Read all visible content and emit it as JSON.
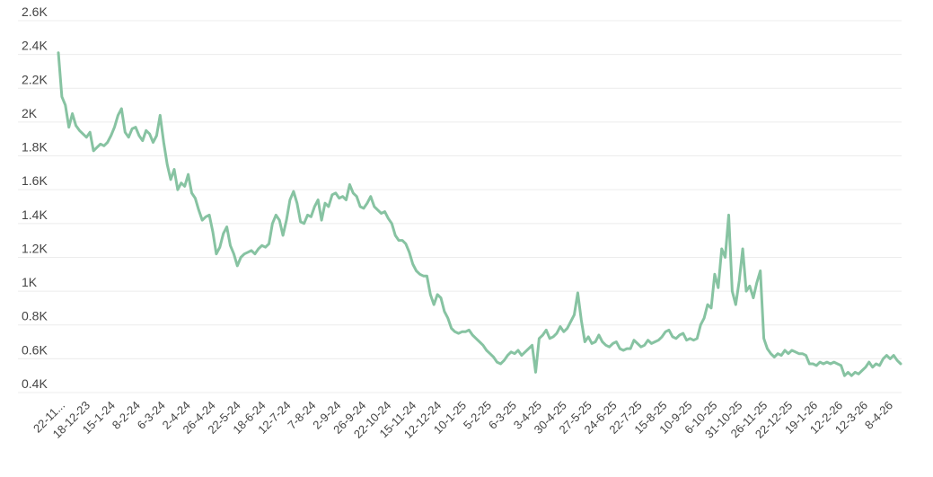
{
  "chart_data": {
    "type": "line",
    "title": "",
    "xlabel": "",
    "ylabel": "",
    "ylim": [
      0.4,
      2.6
    ],
    "grid": true,
    "legend": "none",
    "y_ticks": [
      "0.4K",
      "0.6K",
      "0.8K",
      "1K",
      "1.2K",
      "1.4K",
      "1.6K",
      "1.8K",
      "2K",
      "2.2K",
      "2.4K",
      "2.6K"
    ],
    "x_ticks": [
      "22-11...",
      "18-12-23",
      "15-1-24",
      "8-2-24",
      "6-3-24",
      "2-4-24",
      "26-4-24",
      "22-5-24",
      "18-6-24",
      "12-7-24",
      "7-8-24",
      "2-9-24",
      "26-9-24",
      "22-10-24",
      "15-11-24",
      "12-12-24",
      "10-1-25",
      "5-2-25",
      "6-3-25",
      "3-4-25",
      "30-4-25",
      "27-5-25",
      "24-6-25",
      "22-7-25",
      "15-8-25",
      "10-9-25",
      "6-10-25",
      "31-10-25",
      "26-11-25",
      "22-12-25",
      "19-1-26",
      "12-2-26",
      "12-3-26",
      "8-4-26"
    ],
    "color": "#87c3a2",
    "series": [
      {
        "values": [
          2.41,
          2.15,
          2.1,
          1.97,
          2.05,
          1.98,
          1.95,
          1.93,
          1.91,
          1.94,
          1.83,
          1.85,
          1.87,
          1.86,
          1.88,
          1.92,
          1.97,
          2.04,
          2.08,
          1.94,
          1.91,
          1.96,
          1.97,
          1.92,
          1.89,
          1.95,
          1.93,
          1.88,
          1.92,
          2.04,
          1.88,
          1.75,
          1.66,
          1.72,
          1.6,
          1.64,
          1.62,
          1.69,
          1.58,
          1.55,
          1.48,
          1.42,
          1.44,
          1.45,
          1.35,
          1.22,
          1.26,
          1.34,
          1.38,
          1.27,
          1.22,
          1.15,
          1.2,
          1.22,
          1.23,
          1.24,
          1.22,
          1.25,
          1.27,
          1.26,
          1.28,
          1.4,
          1.45,
          1.42,
          1.33,
          1.42,
          1.54,
          1.59,
          1.52,
          1.41,
          1.4,
          1.45,
          1.44,
          1.5,
          1.54,
          1.42,
          1.52,
          1.5,
          1.57,
          1.58,
          1.55,
          1.56,
          1.54,
          1.63,
          1.58,
          1.56,
          1.5,
          1.49,
          1.52,
          1.56,
          1.5,
          1.48,
          1.46,
          1.47,
          1.43,
          1.4,
          1.33,
          1.3,
          1.3,
          1.28,
          1.23,
          1.16,
          1.12,
          1.1,
          1.09,
          1.09,
          0.98,
          0.92,
          0.98,
          0.96,
          0.88,
          0.84,
          0.78,
          0.76,
          0.75,
          0.76,
          0.76,
          0.77,
          0.74,
          0.72,
          0.7,
          0.68,
          0.65,
          0.63,
          0.61,
          0.58,
          0.57,
          0.59,
          0.62,
          0.64,
          0.63,
          0.65,
          0.62,
          0.64,
          0.66,
          0.68,
          0.52,
          0.72,
          0.74,
          0.77,
          0.72,
          0.73,
          0.75,
          0.79,
          0.76,
          0.78,
          0.82,
          0.86,
          0.99,
          0.83,
          0.7,
          0.73,
          0.69,
          0.7,
          0.74,
          0.7,
          0.68,
          0.67,
          0.69,
          0.7,
          0.66,
          0.65,
          0.66,
          0.66,
          0.71,
          0.69,
          0.67,
          0.68,
          0.71,
          0.69,
          0.7,
          0.71,
          0.73,
          0.76,
          0.77,
          0.73,
          0.72,
          0.74,
          0.75,
          0.71,
          0.72,
          0.71,
          0.72,
          0.8,
          0.84,
          0.92,
          0.9,
          1.1,
          1.02,
          1.25,
          1.2,
          1.45,
          1.0,
          0.92,
          1.06,
          1.25,
          1.0,
          1.03,
          0.96,
          1.05,
          1.12,
          0.72,
          0.66,
          0.63,
          0.61,
          0.63,
          0.62,
          0.65,
          0.63,
          0.65,
          0.64,
          0.63,
          0.63,
          0.62,
          0.57,
          0.57,
          0.56,
          0.58,
          0.57,
          0.58,
          0.57,
          0.58,
          0.57,
          0.56,
          0.5,
          0.52,
          0.5,
          0.52,
          0.51,
          0.53,
          0.55,
          0.58,
          0.55,
          0.57,
          0.56,
          0.6,
          0.62,
          0.6,
          0.62,
          0.59,
          0.57
        ]
      }
    ]
  }
}
